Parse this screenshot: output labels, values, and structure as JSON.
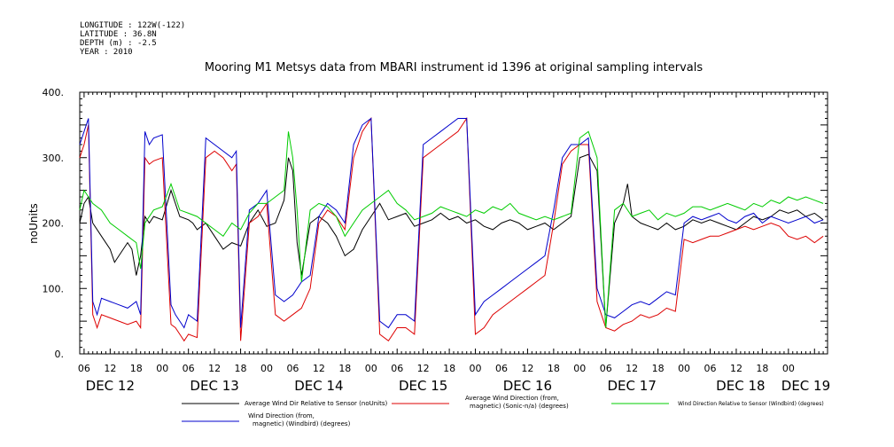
{
  "header": {
    "longitude": "LONGITUDE : 122W(-122)",
    "latitude": "LATITUDE : 36.8N",
    "depth": "DEPTH (m) : -2.5",
    "year": "YEAR : 2010"
  },
  "chart_data": {
    "type": "line",
    "title": "Mooring M1 Metsys data from MBARI instrument id 1396 at original sampling intervals",
    "ylabel": "noUnits",
    "xlabel": "",
    "ylim": [
      0,
      400
    ],
    "xlim": [
      5,
      177
    ],
    "x_unit": "hours since Dec 12 00:00, 2010",
    "y_ticks": [
      0,
      100,
      200,
      300,
      400
    ],
    "x_hour_ticks": [
      {
        "x": 6,
        "label": "06"
      },
      {
        "x": 12,
        "label": "12"
      },
      {
        "x": 18,
        "label": "18"
      },
      {
        "x": 24,
        "label": "00"
      },
      {
        "x": 30,
        "label": "06"
      },
      {
        "x": 36,
        "label": "12"
      },
      {
        "x": 42,
        "label": "18"
      },
      {
        "x": 48,
        "label": "00"
      },
      {
        "x": 54,
        "label": "06"
      },
      {
        "x": 60,
        "label": "12"
      },
      {
        "x": 66,
        "label": "18"
      },
      {
        "x": 72,
        "label": "00"
      },
      {
        "x": 78,
        "label": "06"
      },
      {
        "x": 84,
        "label": "12"
      },
      {
        "x": 90,
        "label": "18"
      },
      {
        "x": 96,
        "label": "00"
      },
      {
        "x": 102,
        "label": "06"
      },
      {
        "x": 108,
        "label": "12"
      },
      {
        "x": 114,
        "label": "18"
      },
      {
        "x": 120,
        "label": "00"
      },
      {
        "x": 126,
        "label": "06"
      },
      {
        "x": 132,
        "label": "12"
      },
      {
        "x": 138,
        "label": "18"
      },
      {
        "x": 144,
        "label": "00"
      },
      {
        "x": 150,
        "label": "06"
      },
      {
        "x": 156,
        "label": "12"
      },
      {
        "x": 162,
        "label": "18"
      },
      {
        "x": 168,
        "label": "00"
      }
    ],
    "date_labels": [
      {
        "x": 12,
        "label": "DEC 12"
      },
      {
        "x": 36,
        "label": "DEC 13"
      },
      {
        "x": 60,
        "label": "DEC 14"
      },
      {
        "x": 84,
        "label": "DEC 15"
      },
      {
        "x": 108,
        "label": "DEC 16"
      },
      {
        "x": 132,
        "label": "DEC 17"
      },
      {
        "x": 157,
        "label": "DEC 18"
      },
      {
        "x": 172,
        "label": "DEC 19"
      }
    ],
    "legend_position": "bottom",
    "series": [
      {
        "name": "Average Wind Dir Relative to Sensor (noUnits)",
        "color": "#000000",
        "x": [
          5,
          6,
          7,
          8,
          10,
          12,
          13,
          14,
          16,
          17,
          18,
          19,
          20,
          21,
          22,
          24,
          26,
          28,
          30,
          31,
          32,
          34,
          36,
          38,
          40,
          42,
          44,
          46,
          48,
          50,
          52,
          53,
          54,
          55,
          56,
          58,
          60,
          62,
          64,
          66,
          68,
          70,
          72,
          74,
          76,
          78,
          80,
          82,
          84,
          86,
          88,
          90,
          92,
          94,
          96,
          98,
          100,
          102,
          104,
          106,
          108,
          110,
          112,
          114,
          116,
          118,
          120,
          122,
          124,
          126,
          128,
          130,
          131,
          132,
          134,
          136,
          138,
          140,
          142,
          144,
          146,
          148,
          150,
          152,
          154,
          156,
          158,
          160,
          162,
          164,
          166,
          168,
          170,
          172,
          174,
          176
        ],
        "y": [
          200,
          230,
          240,
          200,
          180,
          160,
          140,
          150,
          170,
          160,
          120,
          150,
          210,
          200,
          210,
          205,
          250,
          210,
          205,
          200,
          190,
          200,
          180,
          160,
          170,
          165,
          200,
          220,
          195,
          200,
          235,
          300,
          280,
          170,
          120,
          200,
          210,
          200,
          180,
          150,
          160,
          190,
          210,
          230,
          205,
          210,
          215,
          195,
          200,
          205,
          215,
          205,
          210,
          200,
          205,
          195,
          190,
          200,
          205,
          200,
          190,
          195,
          200,
          190,
          200,
          210,
          300,
          305,
          280,
          40,
          200,
          230,
          260,
          210,
          200,
          195,
          190,
          200,
          190,
          195,
          205,
          200,
          205,
          200,
          195,
          190,
          200,
          210,
          205,
          210,
          220,
          215,
          220,
          210,
          215,
          205
        ]
      },
      {
        "name": "Average Wind Direction (from, magnetic) (Sonic-n/a) (degrees)",
        "color": "#dd0000",
        "x": [
          5,
          6,
          7,
          8,
          9,
          10,
          12,
          14,
          16,
          18,
          19,
          20,
          21,
          22,
          24,
          26,
          27,
          28,
          29,
          30,
          32,
          34,
          36,
          38,
          40,
          41,
          42,
          44,
          46,
          48,
          50,
          52,
          54,
          56,
          58,
          60,
          62,
          64,
          66,
          68,
          70,
          72,
          74,
          76,
          78,
          80,
          82,
          84,
          86,
          88,
          90,
          92,
          94,
          96,
          98,
          100,
          102,
          104,
          106,
          108,
          110,
          112,
          114,
          116,
          118,
          120,
          122,
          124,
          126,
          128,
          130,
          132,
          134,
          136,
          138,
          140,
          142,
          144,
          146,
          148,
          150,
          152,
          154,
          156,
          158,
          160,
          162,
          164,
          166,
          168,
          170,
          172,
          174,
          176
        ],
        "y": [
          300,
          320,
          350,
          60,
          40,
          60,
          55,
          50,
          45,
          50,
          40,
          300,
          290,
          295,
          300,
          45,
          40,
          30,
          20,
          30,
          25,
          300,
          310,
          300,
          280,
          290,
          20,
          200,
          210,
          230,
          60,
          50,
          60,
          70,
          100,
          200,
          220,
          210,
          190,
          300,
          340,
          360,
          30,
          20,
          40,
          40,
          30,
          300,
          310,
          320,
          330,
          340,
          360,
          30,
          40,
          60,
          70,
          80,
          90,
          100,
          110,
          120,
          200,
          290,
          310,
          320,
          320,
          80,
          40,
          35,
          45,
          50,
          60,
          55,
          60,
          70,
          65,
          175,
          170,
          175,
          180,
          180,
          185,
          190,
          195,
          190,
          195,
          200,
          195,
          180,
          175,
          180,
          170,
          180
        ]
      },
      {
        "name": "Wind Direction Relative to Sensor (Windbird) (degrees)",
        "color": "#00cc00",
        "x": [
          5,
          6,
          7,
          8,
          10,
          12,
          14,
          16,
          18,
          19,
          20,
          22,
          24,
          26,
          28,
          30,
          32,
          34,
          36,
          38,
          40,
          42,
          44,
          46,
          48,
          50,
          52,
          53,
          54,
          55,
          56,
          58,
          60,
          62,
          64,
          66,
          68,
          70,
          72,
          74,
          76,
          78,
          80,
          82,
          84,
          86,
          88,
          90,
          92,
          94,
          96,
          98,
          100,
          102,
          104,
          106,
          108,
          110,
          112,
          114,
          116,
          118,
          120,
          122,
          124,
          126,
          128,
          130,
          132,
          134,
          136,
          138,
          140,
          142,
          144,
          146,
          148,
          150,
          152,
          154,
          156,
          158,
          160,
          162,
          164,
          166,
          168,
          170,
          172,
          174,
          176
        ],
        "y": [
          220,
          250,
          240,
          230,
          220,
          200,
          190,
          180,
          170,
          130,
          200,
          220,
          225,
          260,
          220,
          215,
          210,
          200,
          190,
          180,
          200,
          190,
          215,
          230,
          230,
          240,
          250,
          340,
          300,
          220,
          110,
          220,
          230,
          225,
          210,
          180,
          200,
          220,
          230,
          240,
          250,
          230,
          220,
          205,
          210,
          215,
          225,
          220,
          215,
          210,
          220,
          215,
          225,
          220,
          230,
          215,
          210,
          205,
          210,
          205,
          210,
          215,
          330,
          340,
          300,
          40,
          220,
          230,
          210,
          215,
          220,
          205,
          215,
          210,
          215,
          225,
          225,
          220,
          225,
          230,
          225,
          220,
          230,
          225,
          235,
          230,
          240,
          235,
          240,
          235,
          230
        ]
      },
      {
        "name": "Wind Direction (from, magnetic) (Windbird) (degrees)",
        "color": "#0000cc",
        "x": [
          5,
          6,
          7,
          8,
          9,
          10,
          12,
          14,
          16,
          18,
          19,
          20,
          21,
          22,
          24,
          26,
          27,
          28,
          29,
          30,
          32,
          34,
          36,
          38,
          40,
          41,
          42,
          44,
          46,
          48,
          50,
          52,
          54,
          56,
          58,
          60,
          62,
          64,
          66,
          68,
          70,
          72,
          74,
          76,
          78,
          80,
          82,
          84,
          86,
          88,
          90,
          92,
          94,
          96,
          98,
          100,
          102,
          104,
          106,
          108,
          110,
          112,
          114,
          116,
          118,
          120,
          122,
          124,
          126,
          128,
          130,
          132,
          134,
          136,
          138,
          140,
          142,
          144,
          146,
          148,
          150,
          152,
          154,
          156,
          158,
          160,
          162,
          164,
          166,
          168,
          170,
          172,
          174,
          176
        ],
        "y": [
          320,
          340,
          360,
          80,
          60,
          85,
          80,
          75,
          70,
          80,
          60,
          340,
          320,
          330,
          335,
          75,
          60,
          50,
          40,
          60,
          50,
          330,
          320,
          310,
          300,
          310,
          40,
          220,
          230,
          250,
          90,
          80,
          90,
          110,
          120,
          210,
          230,
          220,
          200,
          320,
          350,
          360,
          50,
          40,
          60,
          60,
          50,
          320,
          330,
          340,
          350,
          360,
          360,
          60,
          80,
          90,
          100,
          110,
          120,
          130,
          140,
          150,
          220,
          300,
          320,
          320,
          330,
          100,
          60,
          55,
          65,
          75,
          80,
          75,
          85,
          95,
          90,
          200,
          210,
          205,
          210,
          215,
          205,
          200,
          210,
          215,
          200,
          210,
          205,
          200,
          205,
          210,
          200,
          205
        ]
      }
    ]
  }
}
